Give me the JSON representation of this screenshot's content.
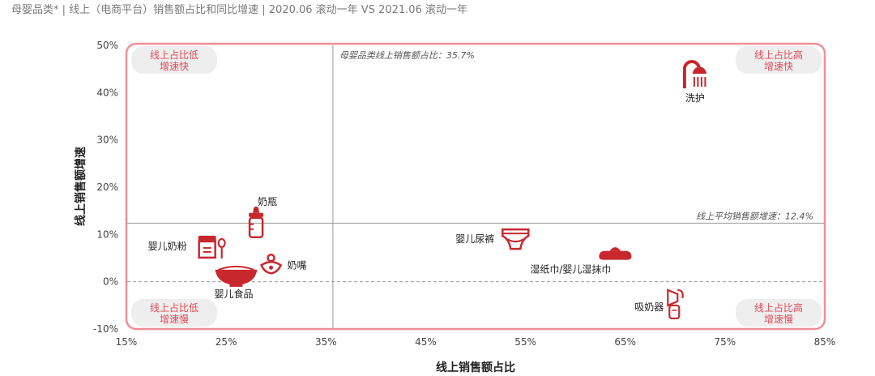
{
  "title": "母婴品类* | 线上（电商平台）销售额占比和同比增速 | 2020.06 滚动一年 VS 2021.06 滚动一年",
  "colors": {
    "accent": "#c8282d",
    "frame": "#f08f97",
    "quadrant_text": "#e24b57",
    "quadrant_bg": "#eeeeee",
    "axis_text": "#444444",
    "grid": "#9a9a9a"
  },
  "quadrants": {
    "top_left": [
      "线上占比低",
      "增速快"
    ],
    "top_right": [
      "线上占比高",
      "增速快"
    ],
    "bottom_left": [
      "线上占比低",
      "增速慢"
    ],
    "bottom_right": [
      "线上占比高",
      "增速慢"
    ]
  },
  "chart_data": {
    "type": "scatter",
    "title": "",
    "xlabel": "线上销售额占比",
    "ylabel": "线上销售额增速",
    "xlim": [
      15,
      85
    ],
    "ylim": [
      -10,
      50
    ],
    "x_ticks": [
      "15%",
      "25%",
      "35%",
      "45%",
      "55%",
      "65%",
      "75%",
      "85%"
    ],
    "y_ticks": [
      "-10%",
      "0%",
      "10%",
      "20%",
      "30%",
      "40%",
      "50%"
    ],
    "reference_lines": {
      "x": {
        "value": 35.7,
        "label": "母婴品类线上销售额占比：35.7%"
      },
      "y": {
        "value": 12.4,
        "label": "线上平均销售额增速：12.4%"
      },
      "zero": {
        "value": 0
      }
    },
    "points": [
      {
        "name": "洗护",
        "x": 72,
        "y": 44,
        "icon": "shower-icon"
      },
      {
        "name": "奶瓶",
        "x": 28,
        "y": 12.5,
        "icon": "baby-bottle-icon"
      },
      {
        "name": "婴儿奶粉",
        "x": 23.5,
        "y": 7.5,
        "icon": "milk-powder-icon"
      },
      {
        "name": "奶嘴",
        "x": 29.5,
        "y": 3.5,
        "icon": "pacifier-icon"
      },
      {
        "name": "婴儿食品",
        "x": 26,
        "y": 1.5,
        "icon": "baby-food-bowl-icon"
      },
      {
        "name": "婴儿尿裤",
        "x": 54,
        "y": 9,
        "icon": "diaper-icon"
      },
      {
        "name": "湿纸巾/婴儿湿抹巾",
        "x": 64,
        "y": 6,
        "icon": "wet-wipes-icon"
      },
      {
        "name": "吸奶器",
        "x": 70,
        "y": -4.5,
        "icon": "breast-pump-icon"
      }
    ]
  }
}
